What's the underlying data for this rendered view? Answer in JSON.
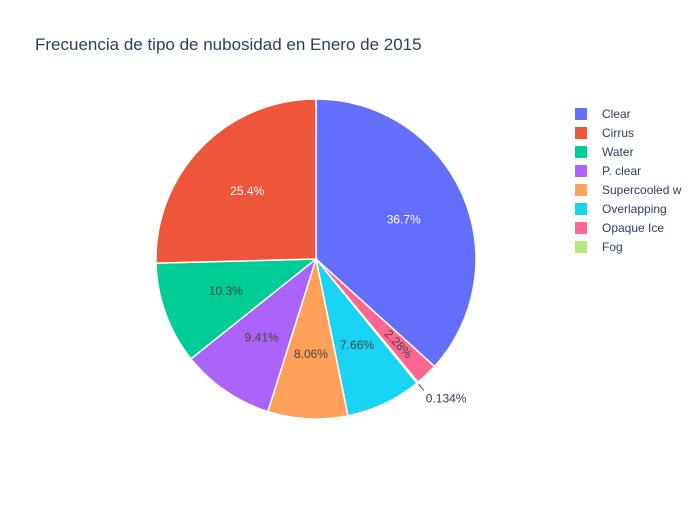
{
  "chart_data": {
    "type": "pie",
    "title": "Frecuencia de tipo de nubosidad en Enero de 2015",
    "slices": [
      {
        "label": "Clear",
        "percent_label": "36.7%",
        "value": 36.7,
        "color": "#636efa"
      },
      {
        "label": "Opaque Ice",
        "percent_label": "2.28%",
        "value": 2.28,
        "color": "#ff6692"
      },
      {
        "label": "Fog",
        "percent_label": "0.134%",
        "value": 0.134,
        "color": "#b6e880"
      },
      {
        "label": "Overlapping",
        "percent_label": "7.66%",
        "value": 7.66,
        "color": "#19d3f3"
      },
      {
        "label": "Supercooled w",
        "percent_label": "8.06%",
        "value": 8.06,
        "color": "#ffa15a"
      },
      {
        "label": "P. clear",
        "percent_label": "9.41%",
        "value": 9.41,
        "color": "#ab63fa"
      },
      {
        "label": "Water",
        "percent_label": "10.3%",
        "value": 10.3,
        "color": "#00cc96"
      },
      {
        "label": "Cirrus",
        "percent_label": "25.4%",
        "value": 25.4,
        "color": "#ef553b"
      }
    ],
    "legend": {
      "placement": "right",
      "items": [
        {
          "label": "Clear",
          "color": "#636efa"
        },
        {
          "label": "Cirrus",
          "color": "#ef553b"
        },
        {
          "label": "Water",
          "color": "#00cc96"
        },
        {
          "label": "P. clear",
          "color": "#ab63fa"
        },
        {
          "label": "Supercooled w",
          "color": "#ffa15a"
        },
        {
          "label": "Overlapping",
          "color": "#19d3f3"
        },
        {
          "label": "Opaque Ice",
          "color": "#ff6692"
        },
        {
          "label": "Fog",
          "color": "#b6e880"
        }
      ]
    }
  }
}
